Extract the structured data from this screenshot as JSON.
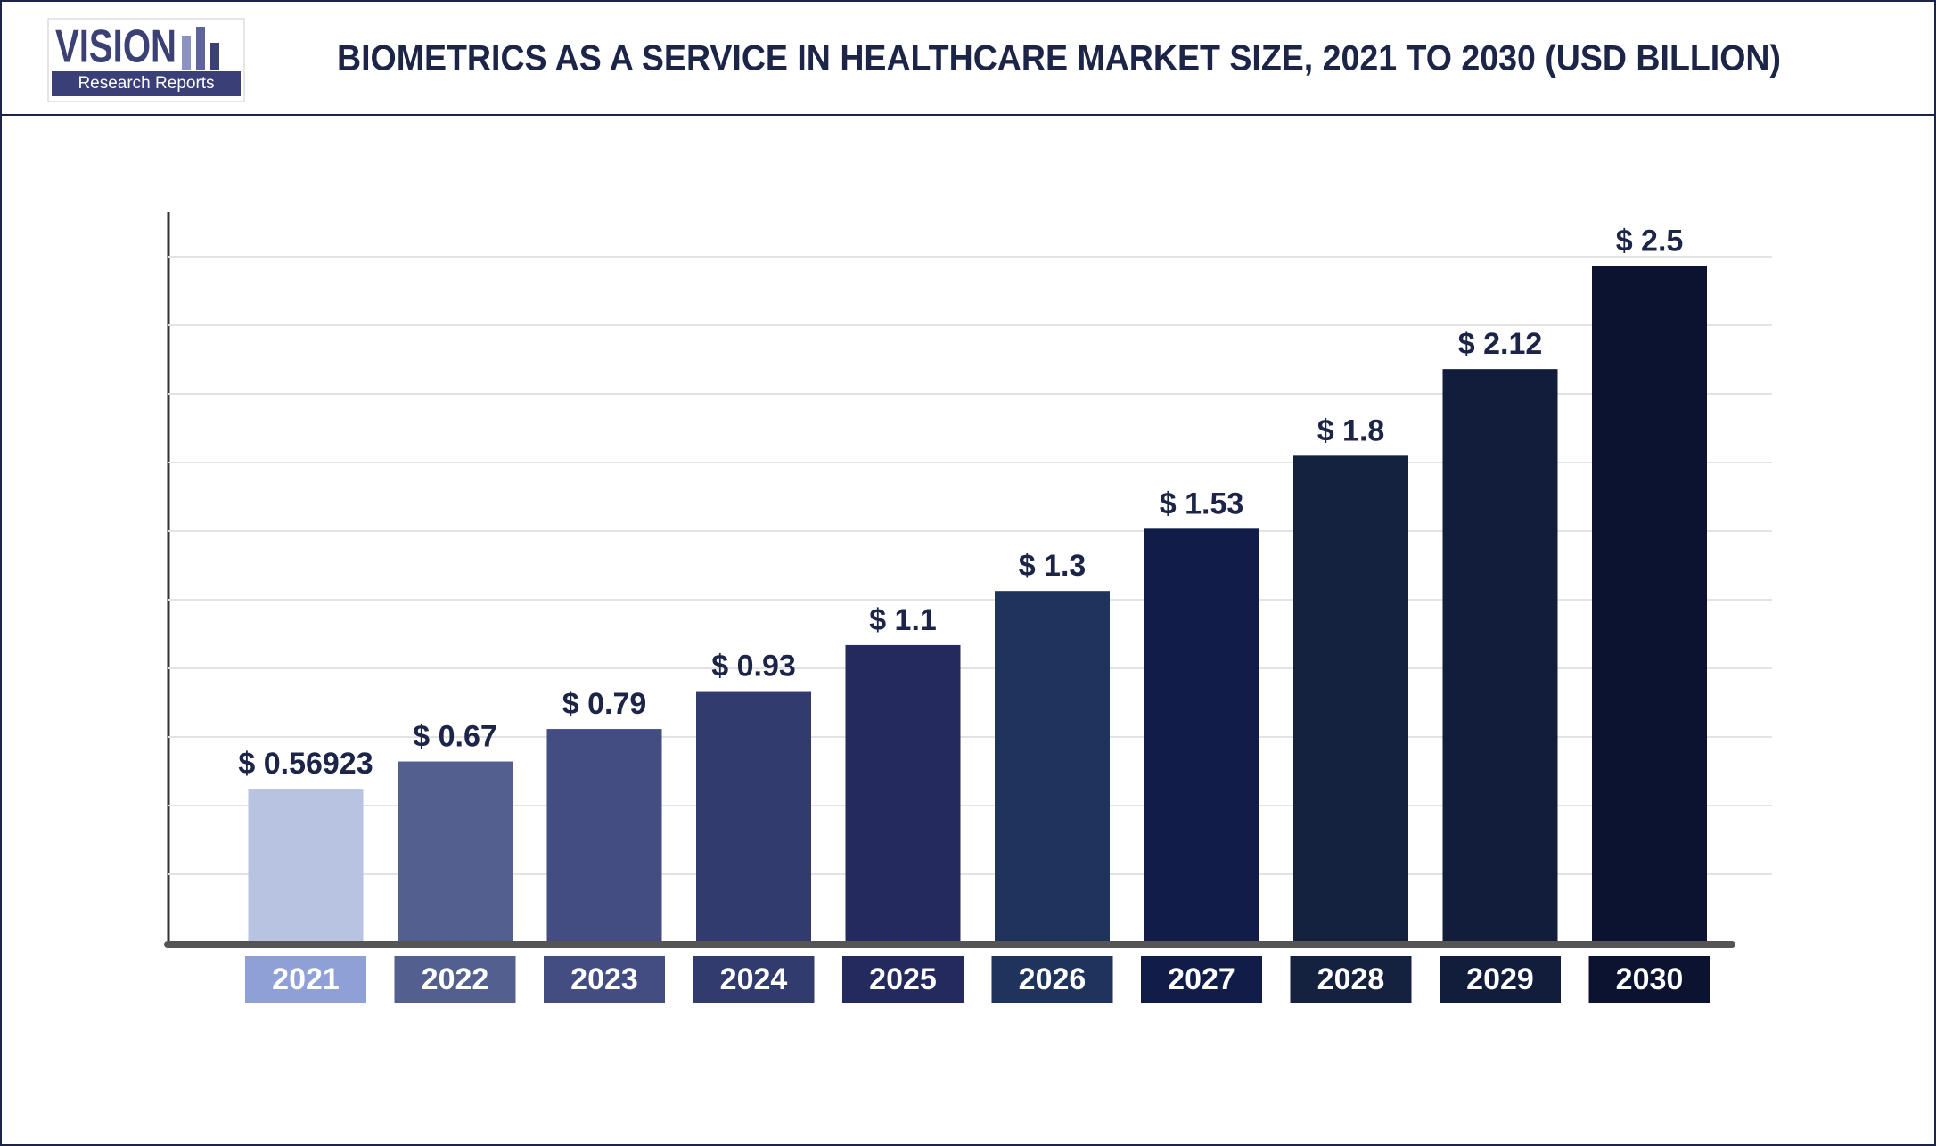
{
  "header": {
    "logo_title": "VISION",
    "logo_subtitle": "Research Reports"
  },
  "chart_data": {
    "type": "bar",
    "title": "BIOMETRICS AS A SERVICE IN HEALTHCARE MARKET SIZE, 2021 TO 2030 (USD BILLION)",
    "categories": [
      "2021",
      "2022",
      "2023",
      "2024",
      "2025",
      "2026",
      "2027",
      "2028",
      "2029",
      "2030"
    ],
    "values": [
      0.56923,
      0.67,
      0.79,
      0.93,
      1.1,
      1.3,
      1.53,
      1.8,
      2.12,
      2.5
    ],
    "value_labels": [
      "$ 0.56923",
      "$ 0.67",
      "$ 0.79",
      "$ 0.93",
      "$ 1.1",
      "$ 1.3",
      "$ 1.53",
      "$ 1.8",
      "$ 2.12",
      "$ 2.5"
    ],
    "colors": [
      "#b8c3e2",
      "#53608f",
      "#434d82",
      "#323b6e",
      "#24295e",
      "#1f345d",
      "#121c48",
      "#14213f",
      "#111d3b",
      "#0b1330"
    ],
    "category_colors": [
      "#8fa0d6",
      "#53608f",
      "#434d82",
      "#323b6e",
      "#24295e",
      "#1f345d",
      "#121c48",
      "#14213f",
      "#111d3b",
      "#0b1330"
    ],
    "ylim": [
      0,
      2.7
    ],
    "grid": true
  }
}
